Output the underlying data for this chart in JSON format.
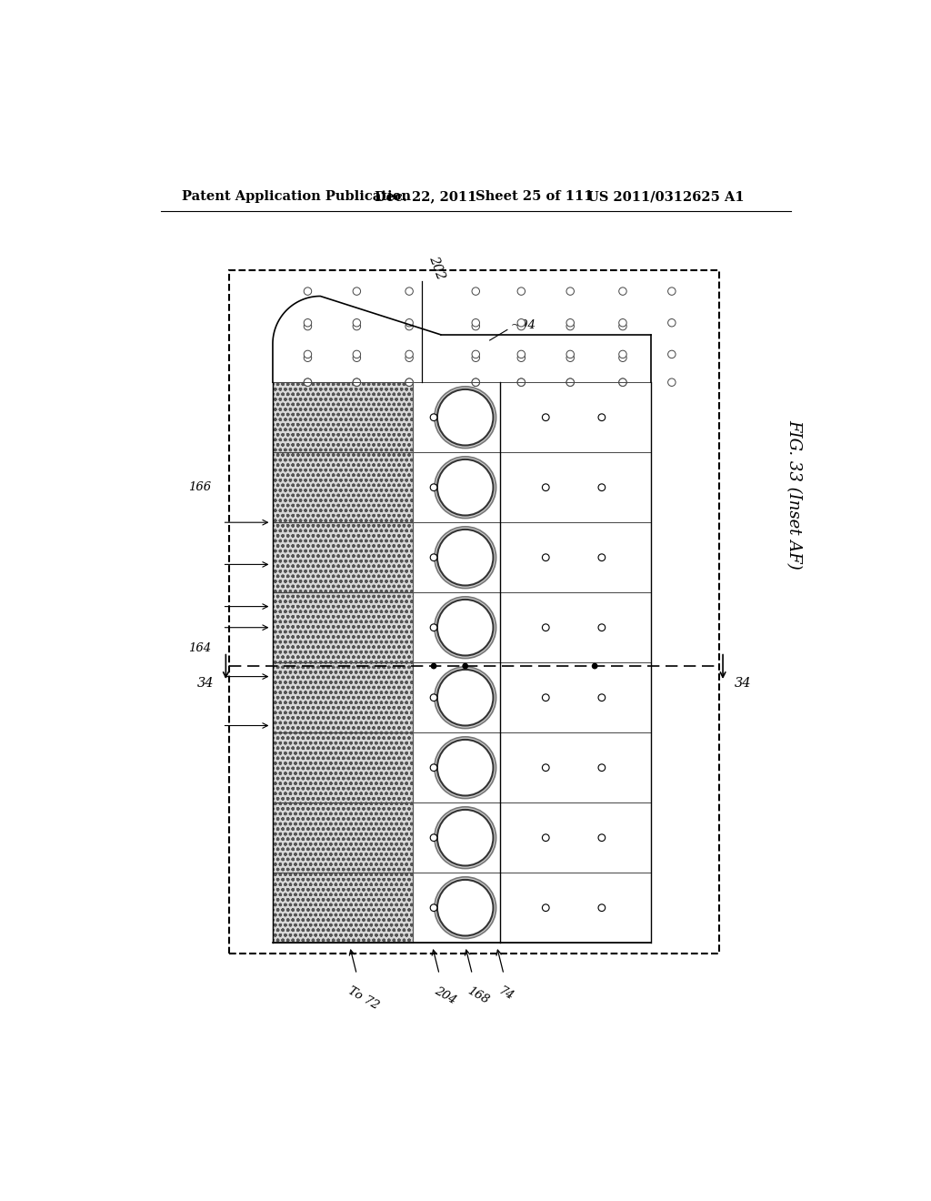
{
  "bg_color": "#ffffff",
  "header_text": "Patent Application Publication",
  "header_date": "Dec. 22, 2011",
  "header_sheet": "Sheet 25 of 111",
  "header_patent": "US 2011/0312625 A1",
  "fig_label": "FIG. 33 (Inset AF)",
  "num_rows": 8,
  "dot_color": "#000000",
  "line_color": "#000000",
  "hatch_color": "#aaaaaa",
  "gray_fill": "#e8e8e8"
}
